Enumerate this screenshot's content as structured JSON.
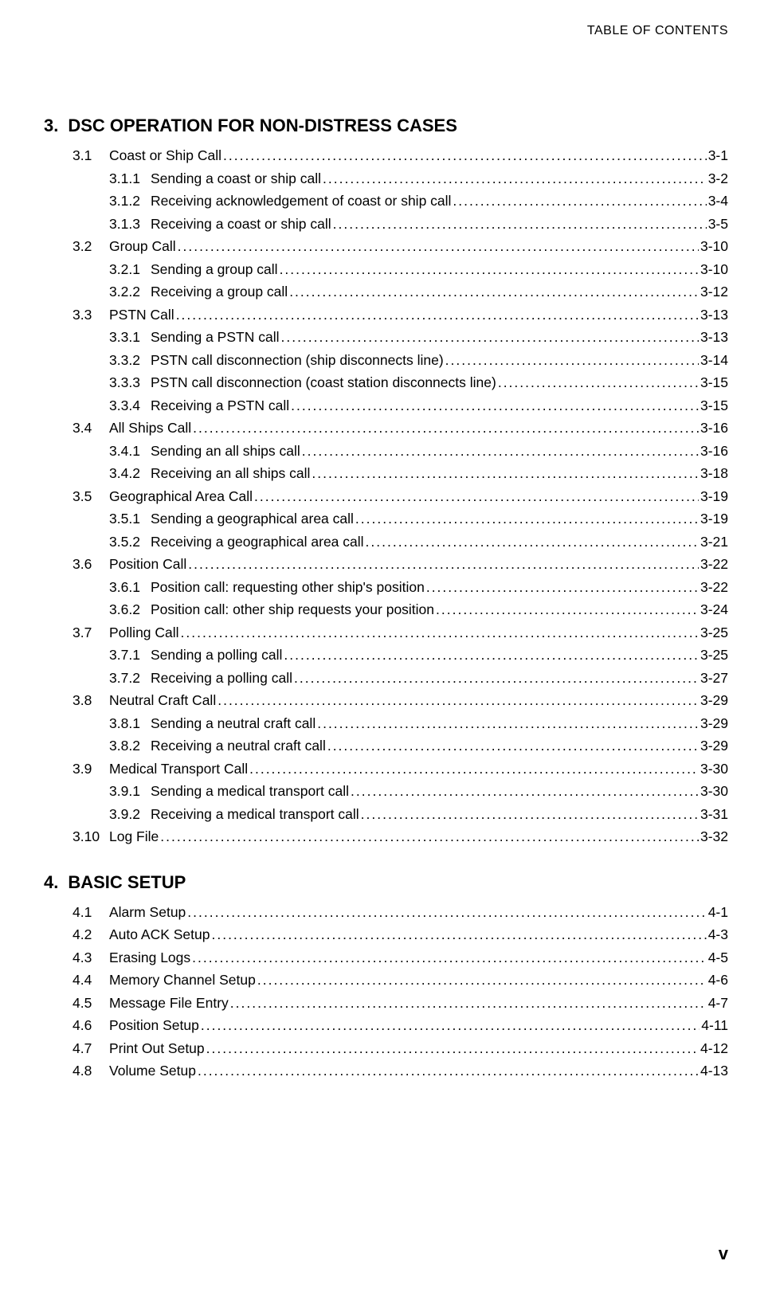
{
  "header": "TABLE OF CONTENTS",
  "page_number": "v",
  "chapters": [
    {
      "num": "3.",
      "title": "DSC OPERATION FOR NON-DISTRESS CASES",
      "entries": [
        {
          "level": 1,
          "num": "3.1",
          "title": "Coast or Ship Call",
          "page": "3-1"
        },
        {
          "level": 2,
          "num": "3.1.1",
          "title": "Sending a coast or ship call",
          "page": "3-2"
        },
        {
          "level": 2,
          "num": "3.1.2",
          "title": "Receiving acknowledgement of coast or ship call",
          "page": "3-4"
        },
        {
          "level": 2,
          "num": "3.1.3",
          "title": "Receiving a coast or ship call",
          "page": "3-5"
        },
        {
          "level": 1,
          "num": "3.2",
          "title": "Group Call",
          "page": "3-10"
        },
        {
          "level": 2,
          "num": "3.2.1",
          "title": "Sending a group call",
          "page": "3-10"
        },
        {
          "level": 2,
          "num": "3.2.2",
          "title": "Receiving a group call",
          "page": "3-12"
        },
        {
          "level": 1,
          "num": "3.3",
          "title": "PSTN Call",
          "page": "3-13"
        },
        {
          "level": 2,
          "num": "3.3.1",
          "title": "Sending a PSTN call",
          "page": "3-13"
        },
        {
          "level": 2,
          "num": "3.3.2",
          "title": "PSTN call disconnection (ship disconnects line)",
          "page": "3-14"
        },
        {
          "level": 2,
          "num": "3.3.3",
          "title": "PSTN call disconnection (coast station disconnects line)",
          "page": "3-15"
        },
        {
          "level": 2,
          "num": "3.3.4",
          "title": "Receiving a PSTN call",
          "page": "3-15"
        },
        {
          "level": 1,
          "num": "3.4",
          "title": "All Ships Call",
          "page": "3-16"
        },
        {
          "level": 2,
          "num": "3.4.1",
          "title": "Sending an all ships call",
          "page": "3-16"
        },
        {
          "level": 2,
          "num": "3.4.2",
          "title": "Receiving an all ships call",
          "page": "3-18"
        },
        {
          "level": 1,
          "num": "3.5",
          "title": "Geographical Area Call",
          "page": "3-19"
        },
        {
          "level": 2,
          "num": "3.5.1",
          "title": "Sending a geographical area call",
          "page": "3-19"
        },
        {
          "level": 2,
          "num": "3.5.2",
          "title": "Receiving a geographical area call",
          "page": "3-21"
        },
        {
          "level": 1,
          "num": "3.6",
          "title": "Position Call",
          "page": "3-22"
        },
        {
          "level": 2,
          "num": "3.6.1",
          "title": "Position call: requesting other ship's position",
          "page": "3-22"
        },
        {
          "level": 2,
          "num": "3.6.2",
          "title": "Position call: other ship requests your position",
          "page": "3-24"
        },
        {
          "level": 1,
          "num": "3.7",
          "title": "Polling Call",
          "page": "3-25"
        },
        {
          "level": 2,
          "num": "3.7.1",
          "title": "Sending a polling call",
          "page": "3-25"
        },
        {
          "level": 2,
          "num": "3.7.2",
          "title": "Receiving a polling call",
          "page": "3-27"
        },
        {
          "level": 1,
          "num": "3.8",
          "title": "Neutral Craft Call",
          "page": "3-29"
        },
        {
          "level": 2,
          "num": "3.8.1",
          "title": "Sending a neutral craft call",
          "page": "3-29"
        },
        {
          "level": 2,
          "num": "3.8.2",
          "title": "Receiving a neutral craft call",
          "page": "3-29"
        },
        {
          "level": 1,
          "num": "3.9",
          "title": "Medical Transport Call",
          "page": "3-30"
        },
        {
          "level": 2,
          "num": "3.9.1",
          "title": "Sending a medical transport call",
          "page": "3-30"
        },
        {
          "level": 2,
          "num": "3.9.2",
          "title": "Receiving a medical transport call",
          "page": "3-31"
        },
        {
          "level": 1,
          "num": "3.10",
          "title": "Log File",
          "page": "3-32"
        }
      ]
    },
    {
      "num": "4.",
      "title": "BASIC SETUP",
      "entries": [
        {
          "level": 1,
          "num": "4.1",
          "title": "Alarm Setup",
          "page": "4-1"
        },
        {
          "level": 1,
          "num": "4.2",
          "title": "Auto ACK Setup",
          "page": "4-3"
        },
        {
          "level": 1,
          "num": "4.3",
          "title": "Erasing Logs",
          "page": "4-5"
        },
        {
          "level": 1,
          "num": "4.4",
          "title": "Memory Channel Setup",
          "page": "4-6"
        },
        {
          "level": 1,
          "num": "4.5",
          "title": "Message File Entry",
          "page": "4-7"
        },
        {
          "level": 1,
          "num": "4.6",
          "title": "Position Setup",
          "page": "4-11"
        },
        {
          "level": 1,
          "num": "4.7",
          "title": "Print Out Setup",
          "page": "4-12"
        },
        {
          "level": 1,
          "num": "4.8",
          "title": "Volume Setup",
          "page": "4-13"
        }
      ]
    }
  ]
}
